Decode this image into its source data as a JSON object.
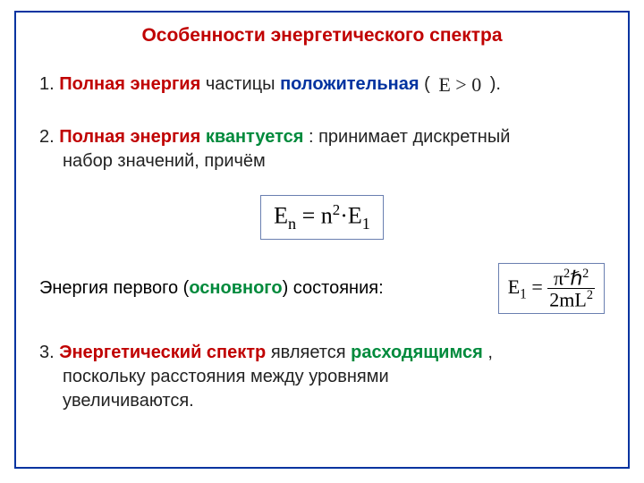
{
  "title": "Особенности энергетического спектра",
  "item1": {
    "num": "1.",
    "red": "Полная энергия",
    "mid": " частицы ",
    "blue": "положительная",
    "open": " (",
    "math": "E > 0",
    "close": ").",
    "text_color": "#222222"
  },
  "item2": {
    "num": "2.",
    "red": "Полная энергия",
    "gap": " ",
    "green": "квантуется",
    "tail": ": принимает дискретный",
    "line2": "набор значений, причём"
  },
  "formula_main": {
    "lhs_base": "E",
    "lhs_sub": "n",
    "eq": " = ",
    "n": "n",
    "sq": "2",
    "dot": "·",
    "r_base": "E",
    "r_sub": "1",
    "border_color": "#6a7fb0",
    "font": "Times New Roman"
  },
  "ground": {
    "pre": "Энергия первого (",
    "green": "основного",
    "post": ") состояния:",
    "formula": {
      "lhs_base": "E",
      "lhs_sub": "1",
      "eq": " = ",
      "num_a": "π",
      "num_a_sup": "2",
      "num_b": "ℏ",
      "num_b_sup": "2",
      "den_a": "2m",
      "den_b": "L",
      "den_b_sup": "2",
      "border_color": "#6a7fb0"
    }
  },
  "item3": {
    "num": "3.",
    "red": "Энергетический спектр",
    "mid": " является ",
    "green": "расходящимся",
    "tail": ",",
    "line2": "поскольку расстояния между уровнями",
    "line3": "увеличиваются."
  },
  "palette": {
    "frame_border": "#0033a0",
    "red": "#c00000",
    "blue": "#0033a0",
    "green": "#008a3c",
    "background": "#ffffff"
  },
  "font_sizes_pt": {
    "title": 16,
    "body": 15,
    "formula": 20
  }
}
